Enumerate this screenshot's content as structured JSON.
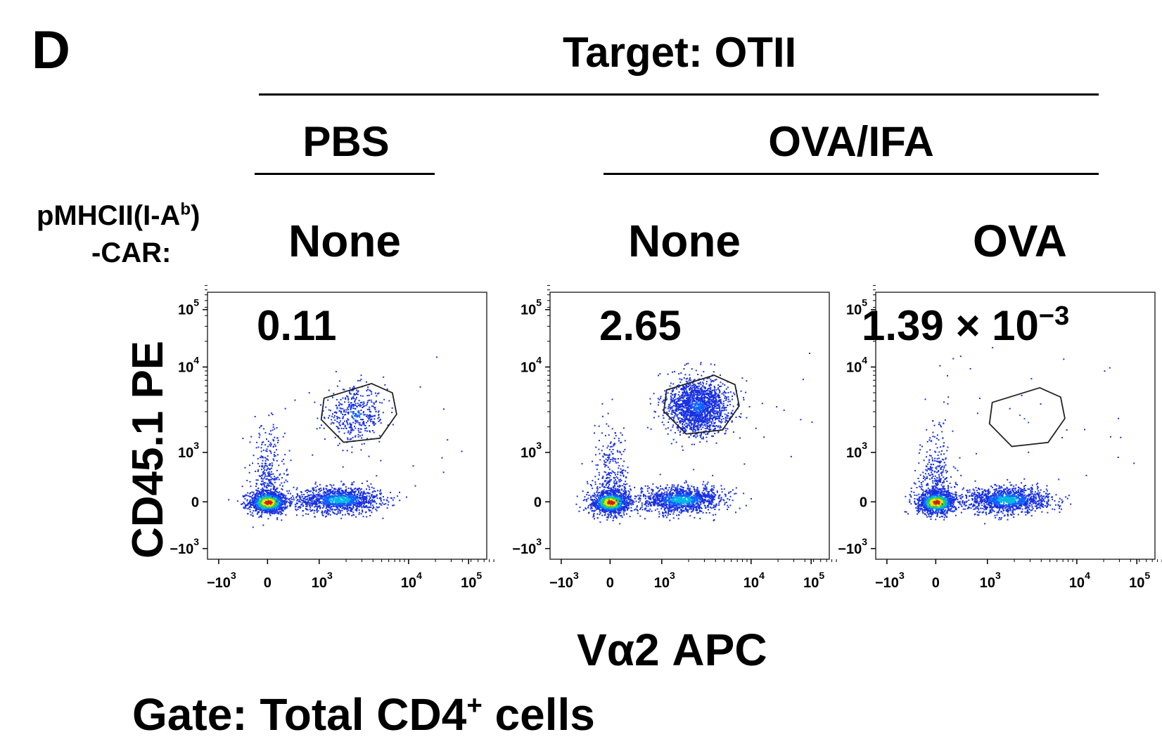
{
  "figure": {
    "panel_letter": "D",
    "target": "Target: OTII",
    "groups": [
      "PBS",
      "OVA/IFA"
    ],
    "car_label_line1": "pMHCII(I-A",
    "car_label_sup": "b",
    "car_label_line1_end": ")",
    "car_label_line2": "-CAR:",
    "car_values": [
      "None",
      "None",
      "OVA"
    ],
    "ylabel": "CD45.1 PE",
    "xlabel": "Vα2 APC",
    "gate_label": "Gate: Total CD4",
    "gate_label_sup": "+",
    "gate_label_end": " cells"
  },
  "chart_data": [
    {
      "type": "scatter",
      "group": "PBS",
      "car": "None",
      "gate_frequency": "0.11",
      "xlabel": "Vα2 APC",
      "ylabel": "CD45.1 PE",
      "xscale": "biexponential",
      "yscale": "biexponential",
      "xticks": [
        "−10^3",
        "0",
        "10^3",
        "10^4",
        "10^5"
      ],
      "yticks": [
        "−10^3",
        "0",
        "10^3",
        "10^4",
        "10^5"
      ],
      "gate_center": [
        2500,
        2800
      ]
    },
    {
      "type": "scatter",
      "group": "OVA/IFA",
      "car": "None",
      "gate_frequency": "2.65",
      "xlabel": "Vα2 APC",
      "ylabel": "CD45.1 PE",
      "xscale": "biexponential",
      "yscale": "biexponential",
      "xticks": [
        "−10^3",
        "0",
        "10^3",
        "10^4",
        "10^5"
      ],
      "yticks": [
        "−10^3",
        "0",
        "10^3",
        "10^4",
        "10^5"
      ],
      "gate_center": [
        2500,
        3500
      ]
    },
    {
      "type": "scatter",
      "group": "OVA/IFA",
      "car": "OVA",
      "gate_frequency": "1.39 × 10",
      "gate_frequency_exp": "−3",
      "xlabel": "Vα2 APC",
      "ylabel": "CD45.1 PE",
      "xscale": "biexponential",
      "yscale": "biexponential",
      "xticks": [
        "−10^3",
        "0",
        "10^3",
        "10^4",
        "10^5"
      ],
      "yticks": [
        "−10^3",
        "0",
        "10^3",
        "10^4",
        "10^5"
      ],
      "gate_center": [
        2500,
        2500
      ]
    }
  ]
}
